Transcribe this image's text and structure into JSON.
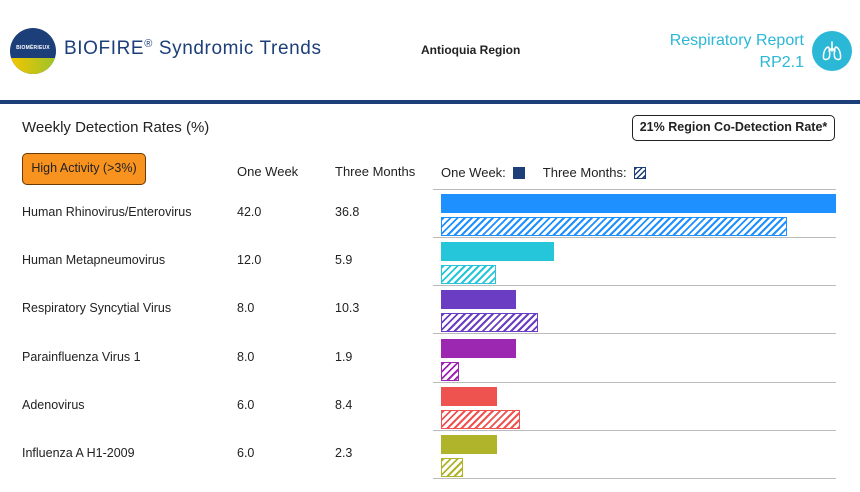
{
  "header": {
    "brand_name": "BIOFIRE",
    "brand_reg": "®",
    "brand_suffix": "Syndromic Trends",
    "logo_text": "BIOMÉRIEUX",
    "region": "Antioquia Region",
    "report_title_line1": "Respiratory Report",
    "report_title_line2": "RP2.1",
    "accent_color": "#2bb7d6",
    "brand_color": "#1c3f7a"
  },
  "section": {
    "title": "Weekly Detection Rates (%)",
    "codetection_label": "21% Region Co-Detection Rate*"
  },
  "table": {
    "activity_badge": "High Activity (>3%)",
    "badge_color": "#f7931e",
    "col_one_week": "One Week",
    "col_three_months": "Three Months",
    "legend_one_week": "One Week:",
    "legend_three_months": "Three Months:",
    "scale_max": 42.0,
    "rows": [
      {
        "name": "Human Rhinovirus/Enterovirus",
        "one_week": "42.0",
        "three_months": "36.8",
        "color": "#1e90ff"
      },
      {
        "name": "Human Metapneumovirus",
        "one_week": "12.0",
        "three_months": "5.9",
        "color": "#26c6da"
      },
      {
        "name": "Respiratory Syncytial Virus",
        "one_week": "8.0",
        "three_months": "10.3",
        "color": "#6a3dc2"
      },
      {
        "name": "Parainfluenza Virus 1",
        "one_week": "8.0",
        "three_months": "1.9",
        "color": "#9c27b0"
      },
      {
        "name": "Adenovirus",
        "one_week": "6.0",
        "three_months": "8.4",
        "color": "#ef5350"
      },
      {
        "name": "Influenza A H1-2009",
        "one_week": "6.0",
        "three_months": "2.3",
        "color": "#afb42b"
      }
    ]
  }
}
